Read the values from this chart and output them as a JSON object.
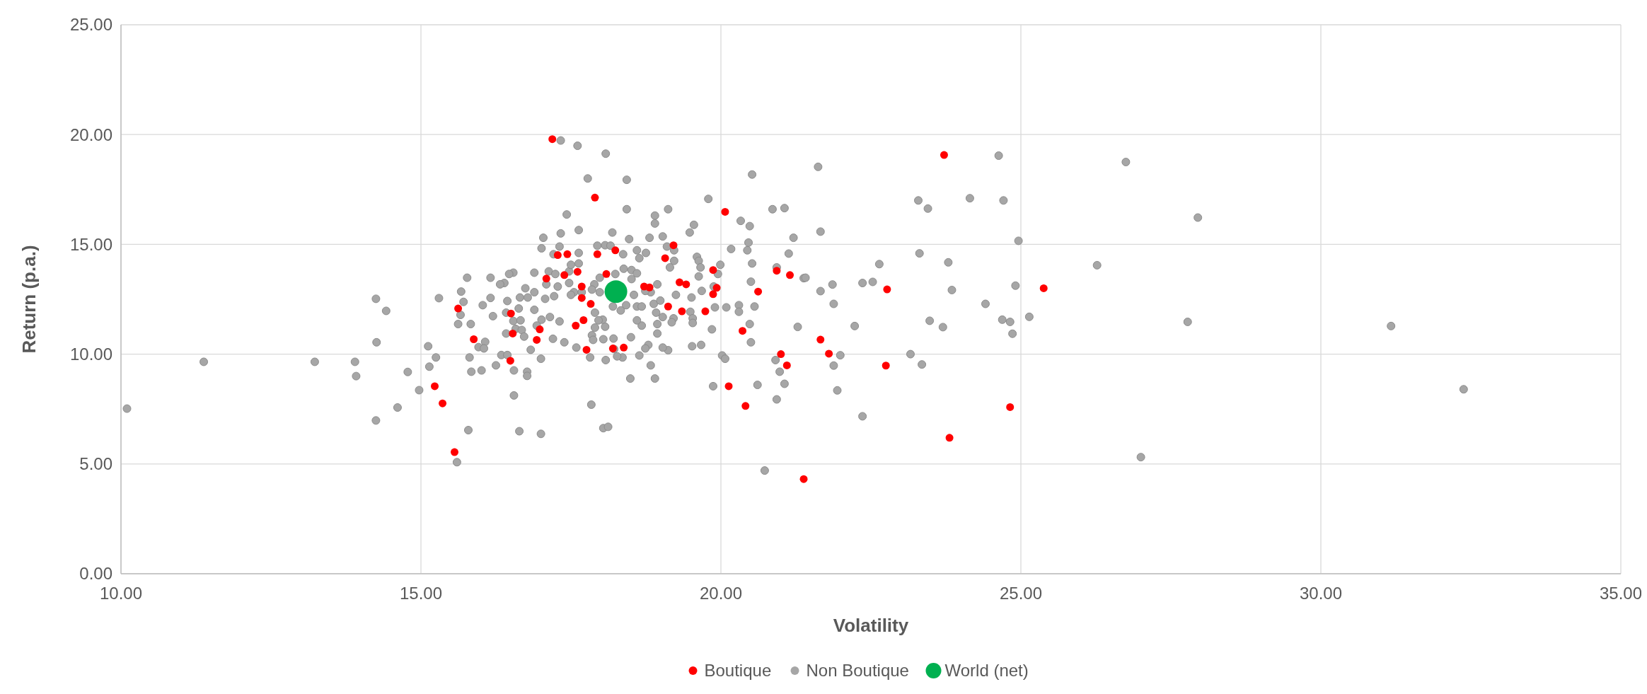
{
  "chart_data": {
    "type": "scatter",
    "xlabel": "Volatility",
    "ylabel": "Return (p.a.)",
    "xlim": [
      10,
      35
    ],
    "ylim": [
      0,
      25
    ],
    "xticks": [
      {
        "value": 10,
        "label": "10.00"
      },
      {
        "value": 15,
        "label": "15.00"
      },
      {
        "value": 20,
        "label": "20.00"
      },
      {
        "value": 25,
        "label": "25.00"
      },
      {
        "value": 30,
        "label": "30.00"
      },
      {
        "value": 35,
        "label": "35.00"
      }
    ],
    "yticks": [
      {
        "value": 0,
        "label": "0.00"
      },
      {
        "value": 5,
        "label": "5.00"
      },
      {
        "value": 10,
        "label": "10.00"
      },
      {
        "value": 15,
        "label": "15.00"
      },
      {
        "value": 20,
        "label": "20.00"
      },
      {
        "value": 25,
        "label": "25.00"
      }
    ],
    "grid": true,
    "legend": "bottom",
    "marker": "circle",
    "series": [
      {
        "name": "Non Boutique",
        "color": "#a6a6a6",
        "x": [
          21.62,
          23.29,
          23.45,
          24.15,
          24.71,
          24.63,
          26.75,
          27.95,
          21.66,
          24.96,
          26.27,
          23.31,
          23.79,
          22.64,
          21.38,
          21.66,
          21.86,
          22.36,
          22.53,
          21.88,
          23.85,
          24.91,
          24.41,
          25.14,
          24.69,
          24.82,
          24.86,
          23.48,
          23.7,
          22.23,
          27.78,
          31.17,
          21.99,
          21.88,
          23.16,
          23.35,
          21.94,
          22.36,
          27.0,
          32.38,
          10.1,
          11.38,
          13.23,
          13.9,
          13.92,
          14.25,
          14.42,
          14.26,
          14.78,
          14.61,
          14.25,
          17.33,
          17.61,
          18.08,
          17.78,
          18.43,
          20.52,
          19.79,
          17.43,
          18.43,
          19.12,
          20.86,
          21.06,
          18.9,
          18.9,
          19.55,
          19.48,
          20.33,
          20.48,
          17.63,
          18.19,
          17.04,
          17.33,
          18.47,
          18.81,
          19.03,
          21.21,
          20.46,
          20.17,
          20.44,
          21.13,
          17.01,
          17.21,
          17.31,
          17.63,
          17.94,
          18.07,
          18.16,
          18.37,
          18.6,
          18.75,
          18.64,
          19.1,
          19.22,
          19.22,
          19.15,
          19.6,
          19.63,
          19.66,
          19.99,
          19.95,
          20.52,
          20.93,
          21.41,
          20.5,
          19.63,
          19.88,
          19.68,
          19.51,
          19.25,
          18.94,
          18.83,
          18.74,
          18.38,
          18.51,
          18.6,
          18.51,
          18.24,
          17.98,
          17.89,
          17.85,
          17.98,
          18.55,
          18.42,
          18.2,
          18.33,
          18.6,
          18.68,
          18.88,
          18.99,
          18.92,
          19.03,
          19.21,
          19.18,
          18.94,
          18.94,
          19.49,
          19.53,
          19.53,
          19.9,
          20.09,
          20.3,
          20.3,
          20.56,
          20.48,
          19.85,
          20.5,
          21.28,
          19.67,
          19.52,
          20.02,
          20.07,
          20.91,
          20.98,
          21.06,
          20.93,
          20.61,
          19.87,
          20.73,
          19.12,
          19.03,
          18.79,
          18.74,
          18.64,
          18.83,
          18.9,
          18.49,
          18.5,
          18.68,
          18.6,
          18.36,
          18.27,
          18.22,
          18.08,
          18.21,
          18.04,
          18.07,
          18.03,
          17.96,
          17.9,
          17.85,
          17.87,
          17.9,
          17.82,
          17.84,
          18.04,
          18.12,
          17.59,
          17.39,
          17.2,
          17.31,
          17.15,
          17.01,
          16.93,
          16.89,
          17.0,
          16.83,
          16.63,
          16.74,
          16.89,
          16.78,
          16.65,
          17.07,
          17.22,
          17.28,
          17.09,
          17.13,
          17.24,
          17.47,
          17.55,
          17.5,
          17.68,
          17.47,
          17.63,
          17.5,
          16.89,
          16.54,
          16.47,
          16.39,
          16.32,
          16.16,
          15.77,
          15.67,
          16.16,
          16.44,
          16.03,
          15.3,
          15.71,
          15.66,
          15.62,
          15.83,
          16.2,
          16.42,
          16.54,
          16.66,
          16.58,
          16.68,
          16.72,
          16.42,
          16.07,
          15.96,
          16.05,
          15.12,
          15.25,
          15.14,
          15.81,
          15.84,
          16.01,
          16.25,
          16.34,
          16.44,
          16.55,
          16.77,
          16.77,
          16.55,
          14.97,
          15.79,
          16.64,
          17.0,
          15.6
        ],
        "values": [
          18.53,
          17.0,
          16.63,
          17.1,
          17.0,
          19.04,
          18.75,
          16.22,
          15.58,
          15.16,
          14.05,
          14.59,
          14.18,
          14.1,
          13.46,
          12.87,
          13.17,
          13.24,
          13.29,
          12.29,
          12.92,
          13.12,
          12.29,
          11.7,
          11.57,
          11.47,
          10.93,
          11.52,
          11.23,
          11.28,
          11.47,
          11.28,
          9.95,
          9.48,
          10.0,
          9.53,
          8.35,
          7.17,
          5.31,
          8.4,
          7.52,
          9.65,
          9.65,
          9.65,
          9.0,
          12.52,
          11.97,
          10.54,
          9.19,
          7.57,
          6.98,
          19.73,
          19.49,
          19.13,
          18.0,
          17.94,
          18.18,
          17.07,
          16.36,
          16.6,
          16.6,
          16.6,
          16.65,
          16.31,
          15.95,
          15.89,
          15.54,
          16.07,
          15.83,
          15.65,
          15.54,
          15.3,
          15.5,
          15.24,
          15.3,
          15.36,
          15.3,
          15.08,
          14.79,
          14.73,
          14.58,
          14.82,
          14.55,
          14.9,
          14.61,
          14.94,
          14.96,
          14.94,
          14.55,
          14.73,
          14.61,
          14.37,
          14.9,
          14.73,
          14.25,
          13.95,
          14.43,
          14.25,
          13.95,
          14.07,
          13.65,
          14.13,
          13.95,
          13.48,
          13.3,
          13.54,
          13.08,
          12.88,
          12.58,
          12.7,
          13.18,
          12.82,
          12.88,
          13.89,
          13.83,
          13.68,
          13.42,
          13.65,
          13.48,
          13.18,
          12.94,
          12.82,
          12.7,
          12.23,
          12.17,
          11.99,
          12.17,
          12.17,
          12.29,
          12.44,
          11.89,
          11.69,
          11.63,
          11.45,
          11.37,
          10.94,
          11.93,
          11.63,
          11.42,
          12.13,
          12.13,
          12.23,
          11.93,
          12.17,
          11.37,
          11.13,
          10.54,
          11.24,
          10.42,
          10.36,
          9.94,
          9.79,
          9.73,
          9.2,
          8.65,
          7.94,
          8.6,
          8.54,
          4.7,
          10.18,
          10.3,
          10.42,
          10.26,
          9.94,
          9.49,
          8.89,
          8.89,
          10.77,
          11.3,
          11.54,
          9.85,
          9.9,
          10.23,
          9.73,
          10.71,
          10.68,
          11.25,
          11.57,
          11.54,
          11.21,
          10.86,
          10.65,
          11.89,
          9.85,
          7.7,
          6.63,
          6.69,
          10.3,
          10.54,
          10.7,
          11.49,
          11.69,
          11.57,
          11.3,
          12.02,
          9.79,
          10.2,
          12.08,
          13.0,
          12.82,
          12.58,
          12.58,
          12.52,
          12.64,
          13.08,
          13.18,
          13.77,
          13.65,
          13.24,
          12.82,
          12.7,
          12.82,
          13.77,
          14.13,
          14.07,
          13.71,
          13.71,
          13.65,
          13.24,
          13.18,
          13.48,
          13.48,
          12.85,
          12.56,
          12.42,
          12.23,
          12.55,
          12.38,
          11.79,
          11.37,
          11.37,
          11.73,
          11.89,
          11.51,
          11.54,
          11.15,
          11.1,
          10.8,
          10.94,
          10.56,
          10.32,
          10.26,
          10.36,
          9.85,
          9.43,
          9.85,
          9.2,
          9.26,
          9.49,
          9.96,
          9.96,
          9.26,
          9.2,
          9.01,
          8.12,
          8.36,
          6.54,
          6.49,
          6.37,
          5.08
        ]
      },
      {
        "name": "Boutique",
        "color": "#ff0000",
        "x": [
          17.19,
          17.9,
          20.07,
          19.21,
          18.24,
          17.94,
          17.28,
          17.44,
          17.39,
          17.09,
          17.61,
          17.68,
          17.68,
          17.83,
          18.09,
          18.72,
          18.81,
          19.31,
          19.42,
          19.07,
          19.87,
          19.93,
          19.87,
          19.12,
          19.35,
          19.74,
          21.15,
          20.62,
          20.93,
          15.62,
          16.5,
          15.88,
          16.53,
          16.98,
          16.93,
          17.58,
          17.71,
          17.76,
          18.2,
          18.38,
          16.49,
          20.36,
          21.0,
          21.1,
          20.13,
          20.41,
          15.23,
          15.36,
          15.56,
          21.38,
          23.72,
          22.77,
          25.38,
          21.66,
          21.8,
          22.75,
          24.82,
          23.81
        ],
        "values": [
          19.79,
          17.13,
          16.48,
          14.96,
          14.73,
          14.55,
          14.51,
          14.55,
          13.6,
          13.44,
          13.75,
          13.08,
          12.56,
          12.29,
          13.65,
          13.08,
          13.04,
          13.27,
          13.18,
          14.37,
          13.83,
          13.02,
          12.73,
          12.17,
          11.95,
          11.95,
          13.6,
          12.85,
          13.8,
          12.08,
          11.85,
          10.68,
          10.94,
          11.13,
          10.65,
          11.3,
          11.55,
          10.2,
          10.26,
          10.3,
          9.7,
          11.06,
          10.0,
          9.49,
          8.54,
          7.64,
          8.54,
          7.76,
          5.54,
          4.31,
          19.07,
          12.95,
          13.0,
          10.66,
          10.02,
          9.48,
          7.59,
          6.19
        ]
      },
      {
        "name": "World (net)",
        "color": "#00b050",
        "x": [
          18.25
        ],
        "values": [
          12.85
        ]
      }
    ]
  }
}
